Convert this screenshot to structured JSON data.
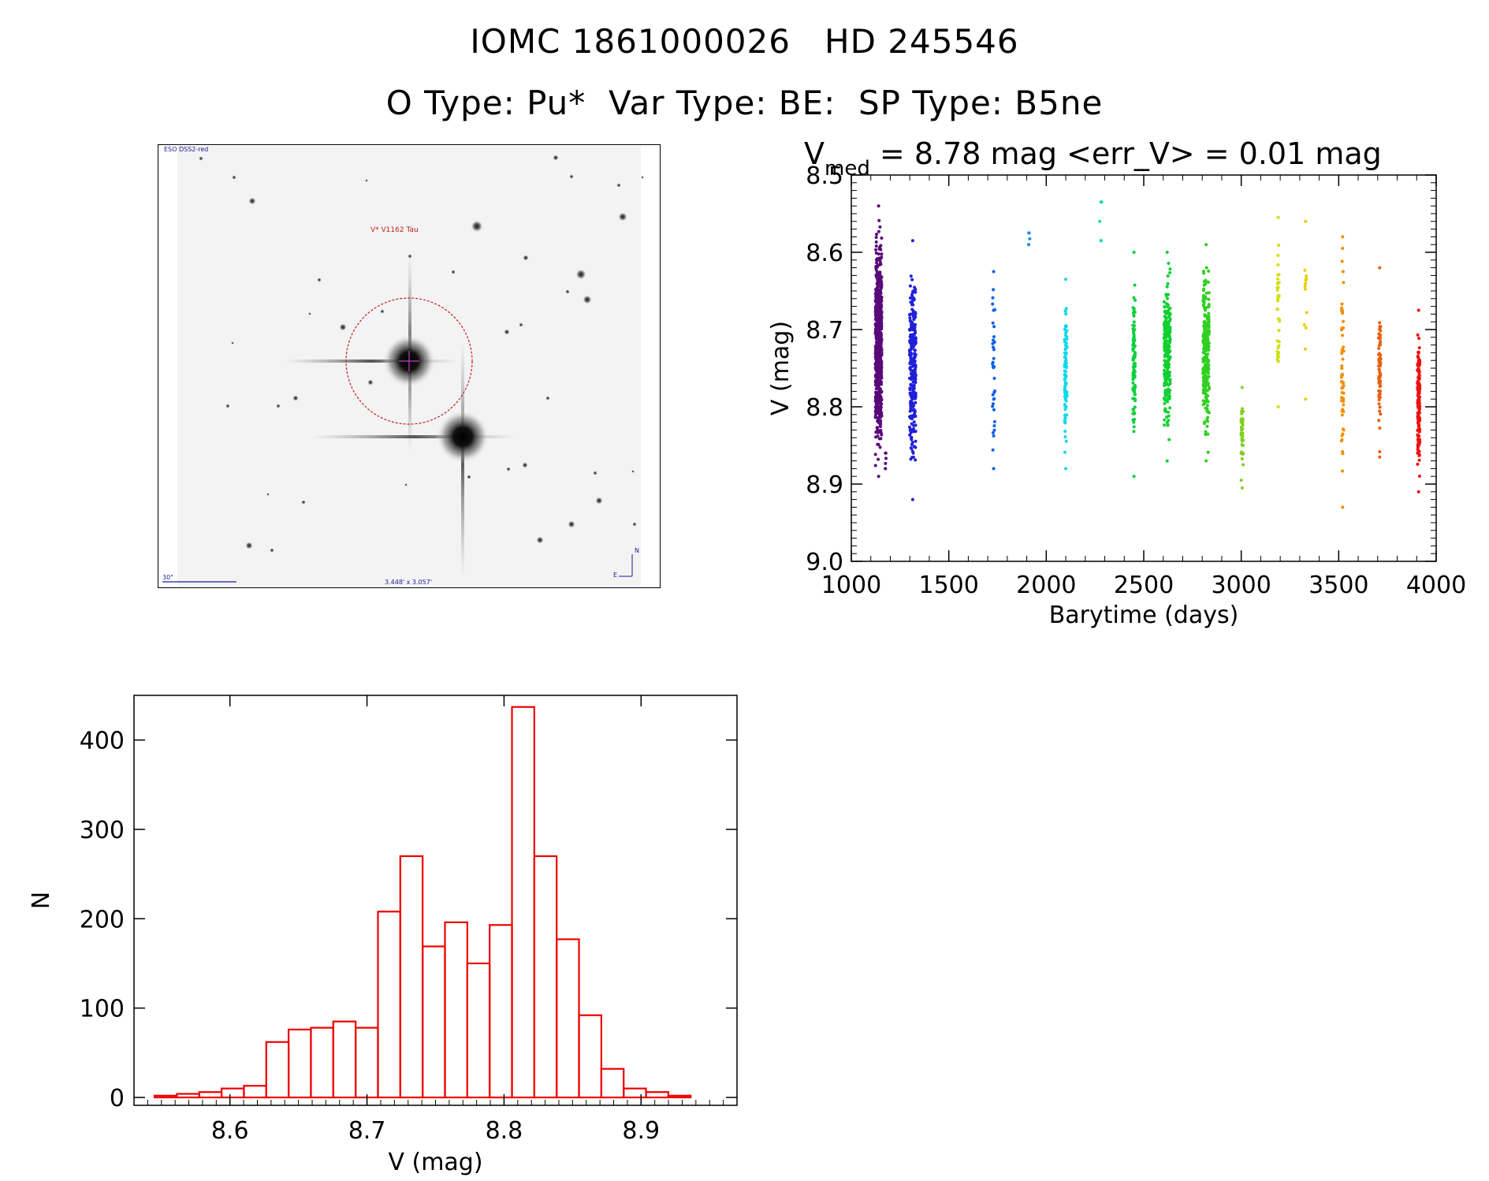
{
  "header": {
    "title_line1": "IOMC 1861000026   HD 245546",
    "title_line2": "O Type: Pu*  Var Type: BE:  SP Type: B5ne"
  },
  "stamp": {
    "survey_label": "ESO DSS2-red",
    "object_label": "V* V1162 Tau",
    "scale_label": "30\"",
    "size_label": "3.448' x 3.057'",
    "compass_n": "N",
    "compass_e": "E"
  },
  "chart_data": [
    {
      "type": "scatter",
      "title_prefix": "V",
      "title_subscript": "med",
      "title_rest": " = 8.78 mag <err_V> = 0.01 mag",
      "xlabel": "Barytime (days)",
      "ylabel": "V (mag)",
      "xlim": [
        1000,
        4000
      ],
      "ylim": [
        9.0,
        8.5
      ],
      "y_inverted": true,
      "xticks": [
        1000,
        1500,
        2000,
        2500,
        3000,
        3500,
        4000
      ],
      "yticks": [
        8.5,
        8.6,
        8.7,
        8.8,
        8.9,
        9.0
      ],
      "xtick_labels": [
        "1000",
        "1500",
        "2000",
        "2500",
        "3000",
        "3500",
        "4000"
      ],
      "ytick_labels": [
        "8.5",
        "8.6",
        "8.7",
        "8.8",
        "8.9",
        "9.0"
      ],
      "series": [
        {
          "x": 1140,
          "ymin": 8.54,
          "ymax": 8.89,
          "color": "#5a0a78",
          "count": 700
        },
        {
          "x": 1175,
          "ymin": 8.86,
          "ymax": 8.88,
          "color": "#5a0a78",
          "count": 4
        },
        {
          "x": 1315,
          "ymin": 8.585,
          "ymax": 8.92,
          "color": "#2020d8",
          "count": 260
        },
        {
          "x": 1730,
          "ymin": 8.625,
          "ymax": 8.88,
          "color": "#1060e8",
          "count": 34
        },
        {
          "x": 1910,
          "ymin": 8.575,
          "ymax": 8.59,
          "color": "#1890f0",
          "count": 3
        },
        {
          "x": 2100,
          "ymin": 8.635,
          "ymax": 8.88,
          "color": "#10d8e8",
          "count": 90
        },
        {
          "x": 2280,
          "ymin": 8.535,
          "ymax": 8.585,
          "color": "#10e0c0",
          "count": 3
        },
        {
          "x": 2450,
          "ymin": 8.6,
          "ymax": 8.89,
          "color": "#10d040",
          "count": 110
        },
        {
          "x": 2620,
          "ymin": 8.6,
          "ymax": 8.87,
          "color": "#10d030",
          "count": 220
        },
        {
          "x": 2820,
          "ymin": 8.59,
          "ymax": 8.87,
          "color": "#30d020",
          "count": 240
        },
        {
          "x": 3005,
          "ymin": 8.775,
          "ymax": 8.905,
          "color": "#80d020",
          "count": 40
        },
        {
          "x": 3190,
          "ymin": 8.555,
          "ymax": 8.8,
          "color": "#d0e010",
          "count": 40
        },
        {
          "x": 3330,
          "ymin": 8.56,
          "ymax": 8.79,
          "color": "#e8d000",
          "count": 12
        },
        {
          "x": 3520,
          "ymin": 8.58,
          "ymax": 8.93,
          "color": "#f09000",
          "count": 60
        },
        {
          "x": 3710,
          "ymin": 8.62,
          "ymax": 8.865,
          "color": "#e86010",
          "count": 70
        },
        {
          "x": 3910,
          "ymin": 8.675,
          "ymax": 8.91,
          "color": "#f01010",
          "count": 160
        }
      ]
    },
    {
      "type": "bar",
      "subtype": "histogram",
      "xlabel": "V (mag)",
      "ylabel": "N",
      "xlim": [
        8.53,
        8.97
      ],
      "ylim": [
        0,
        450
      ],
      "xticks": [
        8.6,
        8.7,
        8.8,
        8.9
      ],
      "yticks": [
        0,
        100,
        200,
        300,
        400
      ],
      "xtick_labels": [
        "8.6",
        "8.7",
        "8.8",
        "8.9"
      ],
      "ytick_labels": [
        "0",
        "100",
        "200",
        "300",
        "400"
      ],
      "bin_start": 8.545,
      "bin_width": 0.0163,
      "values": [
        2,
        4,
        6,
        10,
        13,
        62,
        76,
        78,
        85,
        78,
        208,
        270,
        169,
        196,
        150,
        193,
        437,
        270,
        177,
        92,
        32,
        10,
        6,
        2
      ],
      "color": "#ee0000"
    }
  ]
}
